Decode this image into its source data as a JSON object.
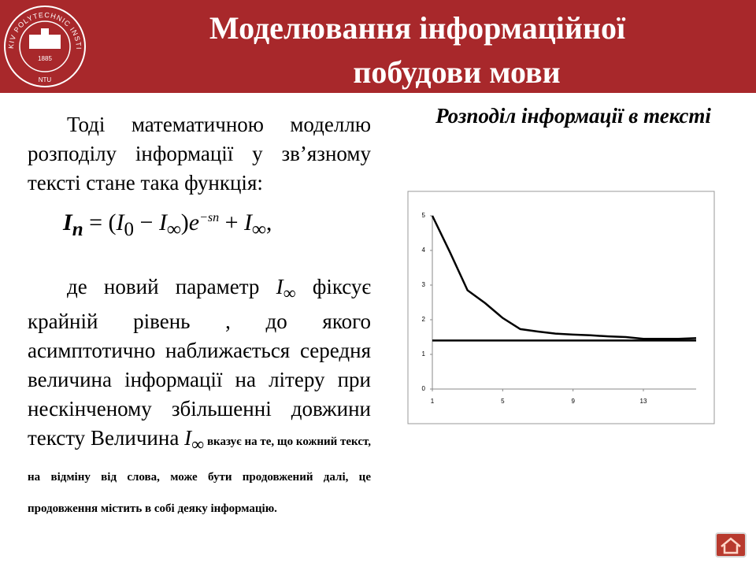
{
  "header": {
    "title": [
      "Моделювання інформаційної",
      "побудови мови"
    ],
    "logo": {
      "name": "KHARKIV POLYTECHNIC INSTITUTE",
      "year": "1885",
      "abbr": "NTU"
    }
  },
  "body": {
    "p1": "Тоді математичною моделлю розподілу інформації у зв’язному тексті стане така функція:",
    "formula": [
      "I",
      "n",
      " = (",
      "I",
      "0",
      " − ",
      "I",
      "∞",
      ")",
      "e",
      "−sn",
      " + ",
      "I",
      "∞",
      ","
    ],
    "p2a": "де новий параметр ",
    "sym": [
      "I",
      "∞"
    ],
    "p2b": " фіксує крайній рівень , до якого асимптотично наближається середня величина інформації на літеру при нескінченому збільшенні довжини тексту Величина ",
    "p2c": " вказує на те, що кожний текст, на відміну від слова, може бути продовжений далі, це продовження містить в собі деяку інформацію."
  },
  "chart_data": {
    "type": "line",
    "title": "Розподіл інформації в тексті",
    "x": [
      1,
      2,
      3,
      4,
      5,
      6,
      7,
      8,
      9,
      10,
      11,
      12,
      13,
      14,
      15,
      16
    ],
    "series": [
      {
        "color": "#000000",
        "values": [
          5.0,
          3.95,
          2.85,
          2.48,
          2.05,
          1.73,
          1.66,
          1.6,
          1.57,
          1.55,
          1.52,
          1.5,
          1.45,
          1.45,
          1.45,
          1.47
        ]
      },
      {
        "color": "#000000",
        "values": [
          1.4,
          1.4,
          1.4,
          1.4,
          1.4,
          1.4,
          1.4,
          1.4,
          1.4,
          1.4,
          1.4,
          1.4,
          1.4,
          1.4,
          1.4,
          1.4
        ]
      }
    ],
    "xlim": [
      1,
      16
    ],
    "xticks": [
      1,
      5,
      9,
      13
    ],
    "ylim": [
      0,
      5
    ],
    "yticks": [
      0,
      1,
      2,
      3,
      4,
      5
    ]
  }
}
